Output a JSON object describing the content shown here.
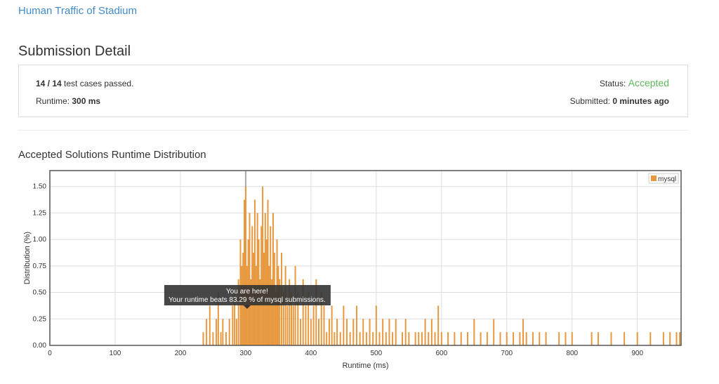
{
  "header": {
    "problem": "Human Traffic of Stadium",
    "title": "Submission Detail"
  },
  "summary": {
    "passed": "14 / 14",
    "passed_suffix": "test cases passed.",
    "runtime_label": "Runtime:",
    "runtime": "300 ms",
    "status_label": "Status:",
    "status": "Accepted",
    "submitted_label": "Submitted:",
    "submitted": "0 minutes ago"
  },
  "section_title": "Accepted Solutions Runtime Distribution",
  "chart_data": {
    "type": "bar",
    "xlabel": "Runtime (ms)",
    "ylabel": "Distribution (%)",
    "series": [
      {
        "name": "mysql",
        "color": "#e8983e",
        "x": [
          235,
          240,
          245,
          250,
          255,
          258,
          262,
          265,
          270,
          275,
          280,
          283,
          286,
          289,
          292,
          294,
          296,
          298,
          300,
          302,
          304,
          306,
          308,
          310,
          312,
          314,
          316,
          318,
          320,
          322,
          324,
          326,
          328,
          330,
          332,
          334,
          336,
          338,
          340,
          342,
          344,
          346,
          348,
          350,
          352,
          355,
          358,
          361,
          364,
          367,
          370,
          373,
          376,
          380,
          384,
          388,
          392,
          396,
          400,
          404,
          408,
          412,
          416,
          420,
          424,
          428,
          432,
          436,
          440,
          445,
          450,
          455,
          460,
          465,
          470,
          475,
          480,
          485,
          490,
          495,
          500,
          505,
          510,
          515,
          520,
          525,
          530,
          540,
          545,
          550,
          560,
          565,
          570,
          575,
          580,
          585,
          590,
          595,
          600,
          610,
          620,
          630,
          640,
          650,
          660,
          670,
          680,
          690,
          700,
          710,
          720,
          725,
          730,
          740,
          750,
          760,
          780,
          790,
          800,
          830,
          840,
          860,
          880,
          900,
          920,
          940,
          950,
          960,
          965
        ],
        "values": [
          0.125,
          0.25,
          0.375,
          0.125,
          0.25,
          0.5,
          0.125,
          0.25,
          0.125,
          0.25,
          0.375,
          0.5,
          0.25,
          0.625,
          1.0,
          0.75,
          0.875,
          1.375,
          1.5,
          0.75,
          1.0,
          1.25,
          0.625,
          1.125,
          0.875,
          1.375,
          0.75,
          1.25,
          1.0,
          0.625,
          1.125,
          1.5,
          0.875,
          1.25,
          1.0,
          1.375,
          0.75,
          1.125,
          0.625,
          1.25,
          0.875,
          0.5,
          1.0,
          0.75,
          0.625,
          0.875,
          0.5,
          0.75,
          0.375,
          0.625,
          0.5,
          0.375,
          0.75,
          0.5,
          0.25,
          0.625,
          0.375,
          0.5,
          0.25,
          0.375,
          0.625,
          0.25,
          0.5,
          0.375,
          0.125,
          0.25,
          0.375,
          0.125,
          0.25,
          0.125,
          0.375,
          0.25,
          0.125,
          0.25,
          0.375,
          0.125,
          0.25,
          0.125,
          0.25,
          0.125,
          0.375,
          0.125,
          0.25,
          0.125,
          0.25,
          0.125,
          0.25,
          0.125,
          0.25,
          0.125,
          0.125,
          0.125,
          0.125,
          0.25,
          0.125,
          0.25,
          0.125,
          0.375,
          0.125,
          0.125,
          0.125,
          0.125,
          0.125,
          0.25,
          0.125,
          0.125,
          0.25,
          0.125,
          0.125,
          0.125,
          0.125,
          0.25,
          0.125,
          0.125,
          0.125,
          0.125,
          0.125,
          0.125,
          0.125,
          0.125,
          0.125,
          0.125,
          0.125,
          0.125,
          0.125,
          0.125,
          0.125,
          0.125,
          0.125
        ]
      }
    ],
    "highlight_x": 300,
    "annotation": {
      "title": "You are here!",
      "text": "Your runtime beats 83.29 % of mysql submissions."
    },
    "xlim": [
      0,
      967
    ],
    "xticks": [
      0,
      100,
      200,
      300,
      400,
      500,
      600,
      700,
      800,
      900
    ],
    "ylim": [
      0,
      1.65
    ],
    "yticks": [
      {
        "value": 0,
        "label": "0.00"
      },
      {
        "value": 0.25,
        "label": "0.25"
      },
      {
        "value": 0.5,
        "label": "0.50"
      },
      {
        "value": 0.75,
        "label": "0.75"
      },
      {
        "value": 1,
        "label": "1.00"
      },
      {
        "value": 1.25,
        "label": "1.25"
      },
      {
        "value": 1.5,
        "label": "1.50"
      }
    ],
    "grid": true,
    "legend": "top-right"
  }
}
